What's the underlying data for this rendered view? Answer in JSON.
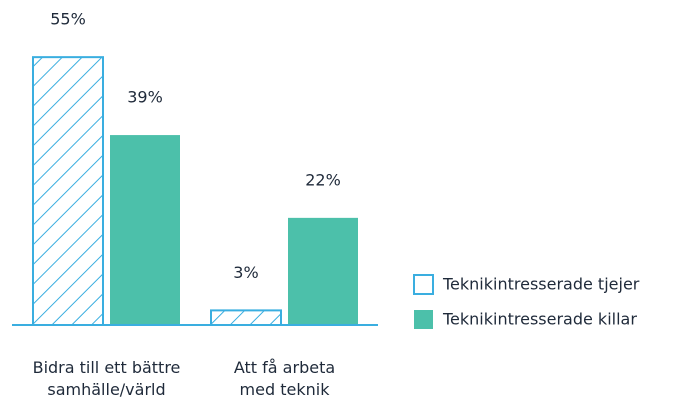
{
  "chart_data": {
    "type": "bar",
    "categories": [
      "Bidra till ett bättre\nsamhälle/värld",
      "Att få arbeta\nmed teknik"
    ],
    "series": [
      {
        "name": "Teknikintresserade tjejer",
        "color": "#3aaee0",
        "hatched": true,
        "values": [
          55,
          3
        ],
        "value_labels": [
          "55%",
          "3%"
        ]
      },
      {
        "name": "Teknikintresserade killar",
        "color": "#4cc0aa",
        "values": [
          39,
          22
        ],
        "value_labels": [
          "39%",
          "22%"
        ]
      }
    ],
    "legend": "right"
  }
}
